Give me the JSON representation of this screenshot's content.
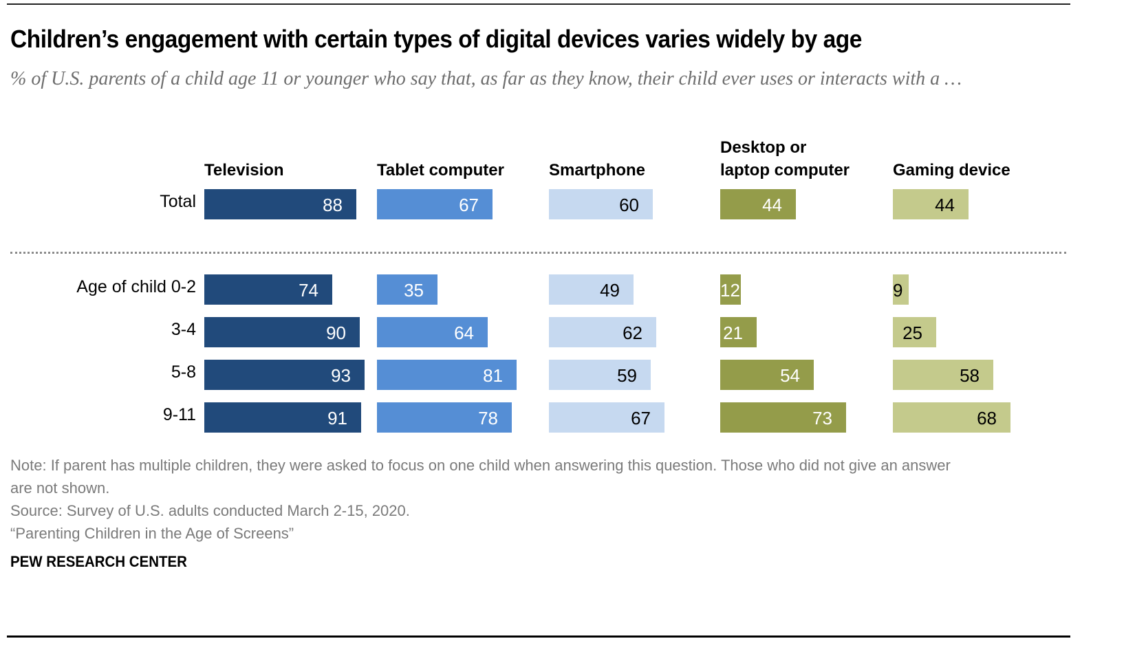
{
  "header": {
    "title": "Children’s engagement with certain types of digital devices varies widely by age",
    "subtitle": "% of U.S. parents of a child age 11 or younger who say that, as far as they know, their child ever uses or interacts with a …"
  },
  "chart_data": {
    "type": "bar",
    "orientation": "horizontal",
    "layout": "small-multiples",
    "title": "Children’s engagement with certain types of digital devices varies widely by age",
    "subtitle": "% of U.S. parents of a child age 11 or younger who say that, as far as they know, their child ever uses or interacts with a …",
    "xlabel": "",
    "ylabel": "",
    "xlim": [
      0,
      100
    ],
    "grid": false,
    "categories": [
      "Total",
      "Age of child 0-2",
      "3-4",
      "5-8",
      "9-11"
    ],
    "series": [
      {
        "name": "Television",
        "color": "#214a7b",
        "label_color": "#ffffff",
        "values": [
          88,
          74,
          90,
          93,
          91
        ]
      },
      {
        "name": "Tablet computer",
        "color": "#558ed5",
        "label_color": "#ffffff",
        "values": [
          67,
          35,
          64,
          81,
          78
        ]
      },
      {
        "name": "Smartphone",
        "color": "#c6d9f0",
        "label_color": "#000000",
        "values": [
          60,
          49,
          62,
          59,
          67
        ]
      },
      {
        "name": "Desktop or laptop computer",
        "color": "#949c4a",
        "label_color": "#ffffff",
        "values": [
          44,
          12,
          21,
          54,
          73
        ]
      },
      {
        "name": "Gaming device",
        "color": "#c4ca8c",
        "label_color": "#000000",
        "values": [
          44,
          9,
          25,
          58,
          68
        ]
      }
    ],
    "column_headers": [
      [
        "Television"
      ],
      [
        "Tablet computer"
      ],
      [
        "Smartphone"
      ],
      [
        "Desktop or",
        "laptop computer"
      ],
      [
        "Gaming device"
      ]
    ],
    "separator_after_category": "Total"
  },
  "footer": {
    "note_line1": "Note: If parent has multiple children, they were asked to focus on one child when answering this question. Those who did not give an answer",
    "note_line2": "are not shown.",
    "source": "Source: Survey of U.S. adults conducted March 2-15, 2020.",
    "report": "“Parenting Children in the Age of Screens”",
    "brand": "PEW RESEARCH CENTER"
  }
}
